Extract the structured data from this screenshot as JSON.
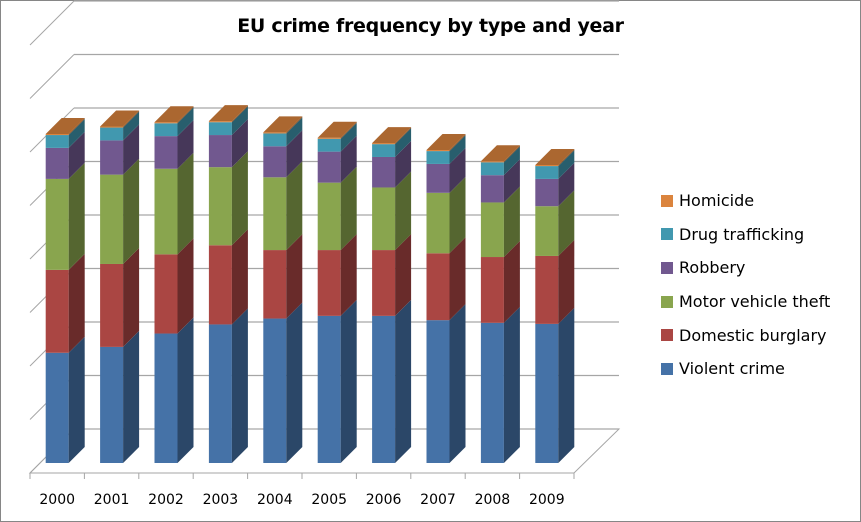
{
  "chart_data": {
    "type": "bar",
    "stacked": true,
    "three_d": true,
    "title": "EU crime frequency by type and year",
    "xlabel": "",
    "ylabel": "",
    "categories": [
      "2000",
      "2001",
      "2002",
      "2003",
      "2004",
      "2005",
      "2006",
      "2007",
      "2008",
      "2009"
    ],
    "ylim": [
      0,
      8
    ],
    "y_tick_labels_shown": false,
    "grid": true,
    "legend_position": "right",
    "series": [
      {
        "name": "Violent crime",
        "color": "#4572A7",
        "values": [
          2.06,
          2.17,
          2.42,
          2.59,
          2.7,
          2.75,
          2.75,
          2.67,
          2.62,
          2.6
        ]
      },
      {
        "name": "Domestic burglary",
        "color": "#AA4643",
        "values": [
          1.55,
          1.55,
          1.48,
          1.48,
          1.28,
          1.23,
          1.23,
          1.25,
          1.23,
          1.27
        ]
      },
      {
        "name": "Motor vehicle theft",
        "color": "#89A54E",
        "values": [
          1.7,
          1.67,
          1.6,
          1.46,
          1.36,
          1.26,
          1.17,
          1.13,
          1.02,
          0.93
        ]
      },
      {
        "name": "Robbery",
        "color": "#71588F",
        "values": [
          0.58,
          0.64,
          0.61,
          0.6,
          0.58,
          0.58,
          0.57,
          0.54,
          0.51,
          0.51
        ]
      },
      {
        "name": "Drug trafficking",
        "color": "#4198AF",
        "values": [
          0.24,
          0.24,
          0.24,
          0.24,
          0.24,
          0.24,
          0.24,
          0.24,
          0.24,
          0.24
        ]
      },
      {
        "name": "Homicide",
        "color": "#DB843D",
        "values": [
          0.02,
          0.02,
          0.02,
          0.02,
          0.02,
          0.02,
          0.02,
          0.02,
          0.02,
          0.02
        ]
      }
    ]
  },
  "legend_order": [
    "Homicide",
    "Drug trafficking",
    "Robbery",
    "Motor vehicle theft",
    "Domestic burglary",
    "Violent crime"
  ]
}
